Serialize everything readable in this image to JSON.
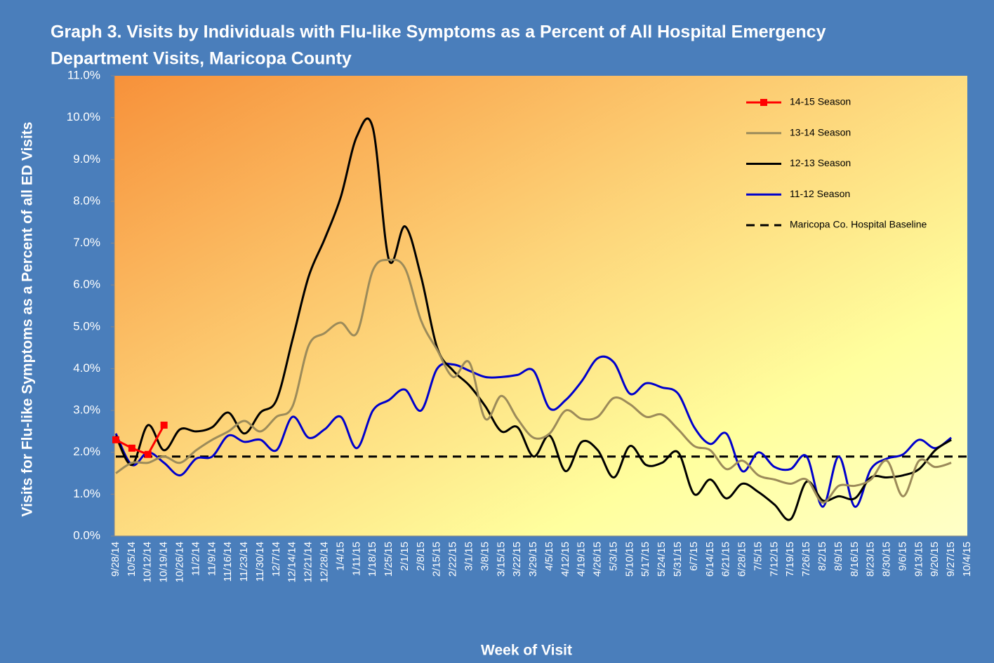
{
  "chart_data": {
    "type": "line",
    "title": [
      "Graph 3. Visits by Individuals  with Flu-like Symptoms as a Percent of All Hospital Emergency",
      "Department Visits, Maricopa County"
    ],
    "y_label": "Visits for Flu-like Symptoms as a Percent of all ED Visits",
    "x_label": "Week of Visit",
    "categories": [
      "9/28/14",
      "10/5/14",
      "10/12/14",
      "10/19/14",
      "10/26/14",
      "11/2/14",
      "11/9/14",
      "11/16/14",
      "11/23/14",
      "11/30/14",
      "12/7/14",
      "12/14/14",
      "12/21/14",
      "12/28/14",
      "1/4/15",
      "1/11/15",
      "1/18/15",
      "1/25/15",
      "2/1/15",
      "2/8/15",
      "2/15/15",
      "2/22/15",
      "3/1/15",
      "3/8/15",
      "3/15/15",
      "3/22/15",
      "3/29/15",
      "4/5/15",
      "4/12/15",
      "4/19/15",
      "4/26/15",
      "5/3/15",
      "5/10/15",
      "5/17/15",
      "5/24/15",
      "5/31/15",
      "6/7/15",
      "6/14/15",
      "6/21/15",
      "6/28/15",
      "7/5/15",
      "7/12/15",
      "7/19/15",
      "7/26/15",
      "8/2/15",
      "8/9/15",
      "8/16/15",
      "8/23/15",
      "8/30/15",
      "9/6/15",
      "9/13/15",
      "9/20/15",
      "9/27/15",
      "10/4/15"
    ],
    "ylim": [
      0,
      11
    ],
    "yticks": [
      {
        "value": 0,
        "label": "0.0%"
      },
      {
        "value": 1,
        "label": "1.0%"
      },
      {
        "value": 2,
        "label": "2.0%"
      },
      {
        "value": 3,
        "label": "3.0%"
      },
      {
        "value": 4,
        "label": "4.0%"
      },
      {
        "value": 5,
        "label": "5.0%"
      },
      {
        "value": 6,
        "label": "6.0%"
      },
      {
        "value": 7,
        "label": "7.0%"
      },
      {
        "value": 8,
        "label": "8.0%"
      },
      {
        "value": 9,
        "label": "9.0%"
      },
      {
        "value": 10,
        "label": "10.0%"
      },
      {
        "value": 11,
        "label": "11.0%"
      }
    ],
    "grid": false,
    "legend": "upper right",
    "series": [
      {
        "name": "14-15 Season",
        "color": "#ff0000",
        "marker": "square",
        "smooth": false,
        "values": [
          2.3,
          2.1,
          1.95,
          2.65,
          null,
          null,
          null,
          null,
          null,
          null,
          null,
          null,
          null,
          null,
          null,
          null,
          null,
          null,
          null,
          null,
          null,
          null,
          null,
          null,
          null,
          null,
          null,
          null,
          null,
          null,
          null,
          null,
          null,
          null,
          null,
          null,
          null,
          null,
          null,
          null,
          null,
          null,
          null,
          null,
          null,
          null,
          null,
          null,
          null,
          null,
          null,
          null,
          null,
          null
        ]
      },
      {
        "name": "13-14 Season",
        "color": "#9c8b5a",
        "smooth": true,
        "values": [
          1.5,
          1.75,
          1.75,
          1.9,
          1.75,
          2.05,
          2.3,
          2.5,
          2.75,
          2.5,
          2.85,
          3.1,
          4.55,
          4.85,
          5.1,
          4.85,
          6.35,
          6.6,
          6.4,
          5.15,
          4.45,
          3.8,
          4.15,
          2.8,
          3.35,
          2.8,
          2.35,
          2.45,
          3.0,
          2.8,
          2.85,
          3.3,
          3.15,
          2.85,
          2.9,
          2.55,
          2.15,
          2.05,
          1.6,
          1.8,
          1.45,
          1.35,
          1.25,
          1.35,
          0.8,
          1.2,
          1.2,
          1.35,
          1.8,
          0.95,
          1.8,
          1.65,
          1.75,
          null
        ]
      },
      {
        "name": "12-13 Season",
        "color": "#000000",
        "smooth": true,
        "values": [
          2.4,
          1.7,
          2.65,
          2.05,
          2.55,
          2.5,
          2.6,
          2.95,
          2.45,
          2.95,
          3.25,
          4.7,
          6.2,
          7.1,
          8.1,
          9.55,
          9.75,
          6.6,
          7.4,
          6.2,
          4.5,
          3.95,
          3.6,
          3.1,
          2.5,
          2.6,
          1.9,
          2.4,
          1.55,
          2.25,
          2.05,
          1.4,
          2.15,
          1.7,
          1.75,
          2.0,
          1.0,
          1.35,
          0.9,
          1.25,
          1.05,
          0.75,
          0.4,
          1.3,
          0.85,
          0.95,
          0.9,
          1.4,
          1.4,
          1.45,
          1.6,
          2.05,
          2.3,
          null
        ]
      },
      {
        "name": "11-12 Season",
        "color": "#0000cc",
        "smooth": true,
        "values": [
          2.45,
          1.7,
          2.0,
          1.75,
          1.45,
          1.85,
          1.9,
          2.4,
          2.25,
          2.3,
          2.05,
          2.85,
          2.35,
          2.55,
          2.85,
          2.1,
          3.0,
          3.25,
          3.5,
          3.0,
          4.0,
          4.1,
          3.95,
          3.8,
          3.8,
          3.85,
          3.95,
          3.05,
          3.25,
          3.7,
          4.25,
          4.15,
          3.4,
          3.65,
          3.55,
          3.4,
          2.6,
          2.2,
          2.45,
          1.55,
          2.0,
          1.65,
          1.6,
          1.9,
          0.7,
          1.9,
          0.7,
          1.6,
          1.85,
          1.95,
          2.3,
          2.1,
          2.35,
          null
        ]
      },
      {
        "name": "Maricopa Co. Hospital Baseline",
        "color": "#000000",
        "dash": true,
        "smooth": false,
        "values": [
          1.9,
          1.9,
          1.9,
          1.9,
          1.9,
          1.9,
          1.9,
          1.9,
          1.9,
          1.9,
          1.9,
          1.9,
          1.9,
          1.9,
          1.9,
          1.9,
          1.9,
          1.9,
          1.9,
          1.9,
          1.9,
          1.9,
          1.9,
          1.9,
          1.9,
          1.9,
          1.9,
          1.9,
          1.9,
          1.9,
          1.9,
          1.9,
          1.9,
          1.9,
          1.9,
          1.9,
          1.9,
          1.9,
          1.9,
          1.9,
          1.9,
          1.9,
          1.9,
          1.9,
          1.9,
          1.9,
          1.9,
          1.9,
          1.9,
          1.9,
          1.9,
          1.9,
          1.9,
          1.9
        ]
      }
    ]
  }
}
